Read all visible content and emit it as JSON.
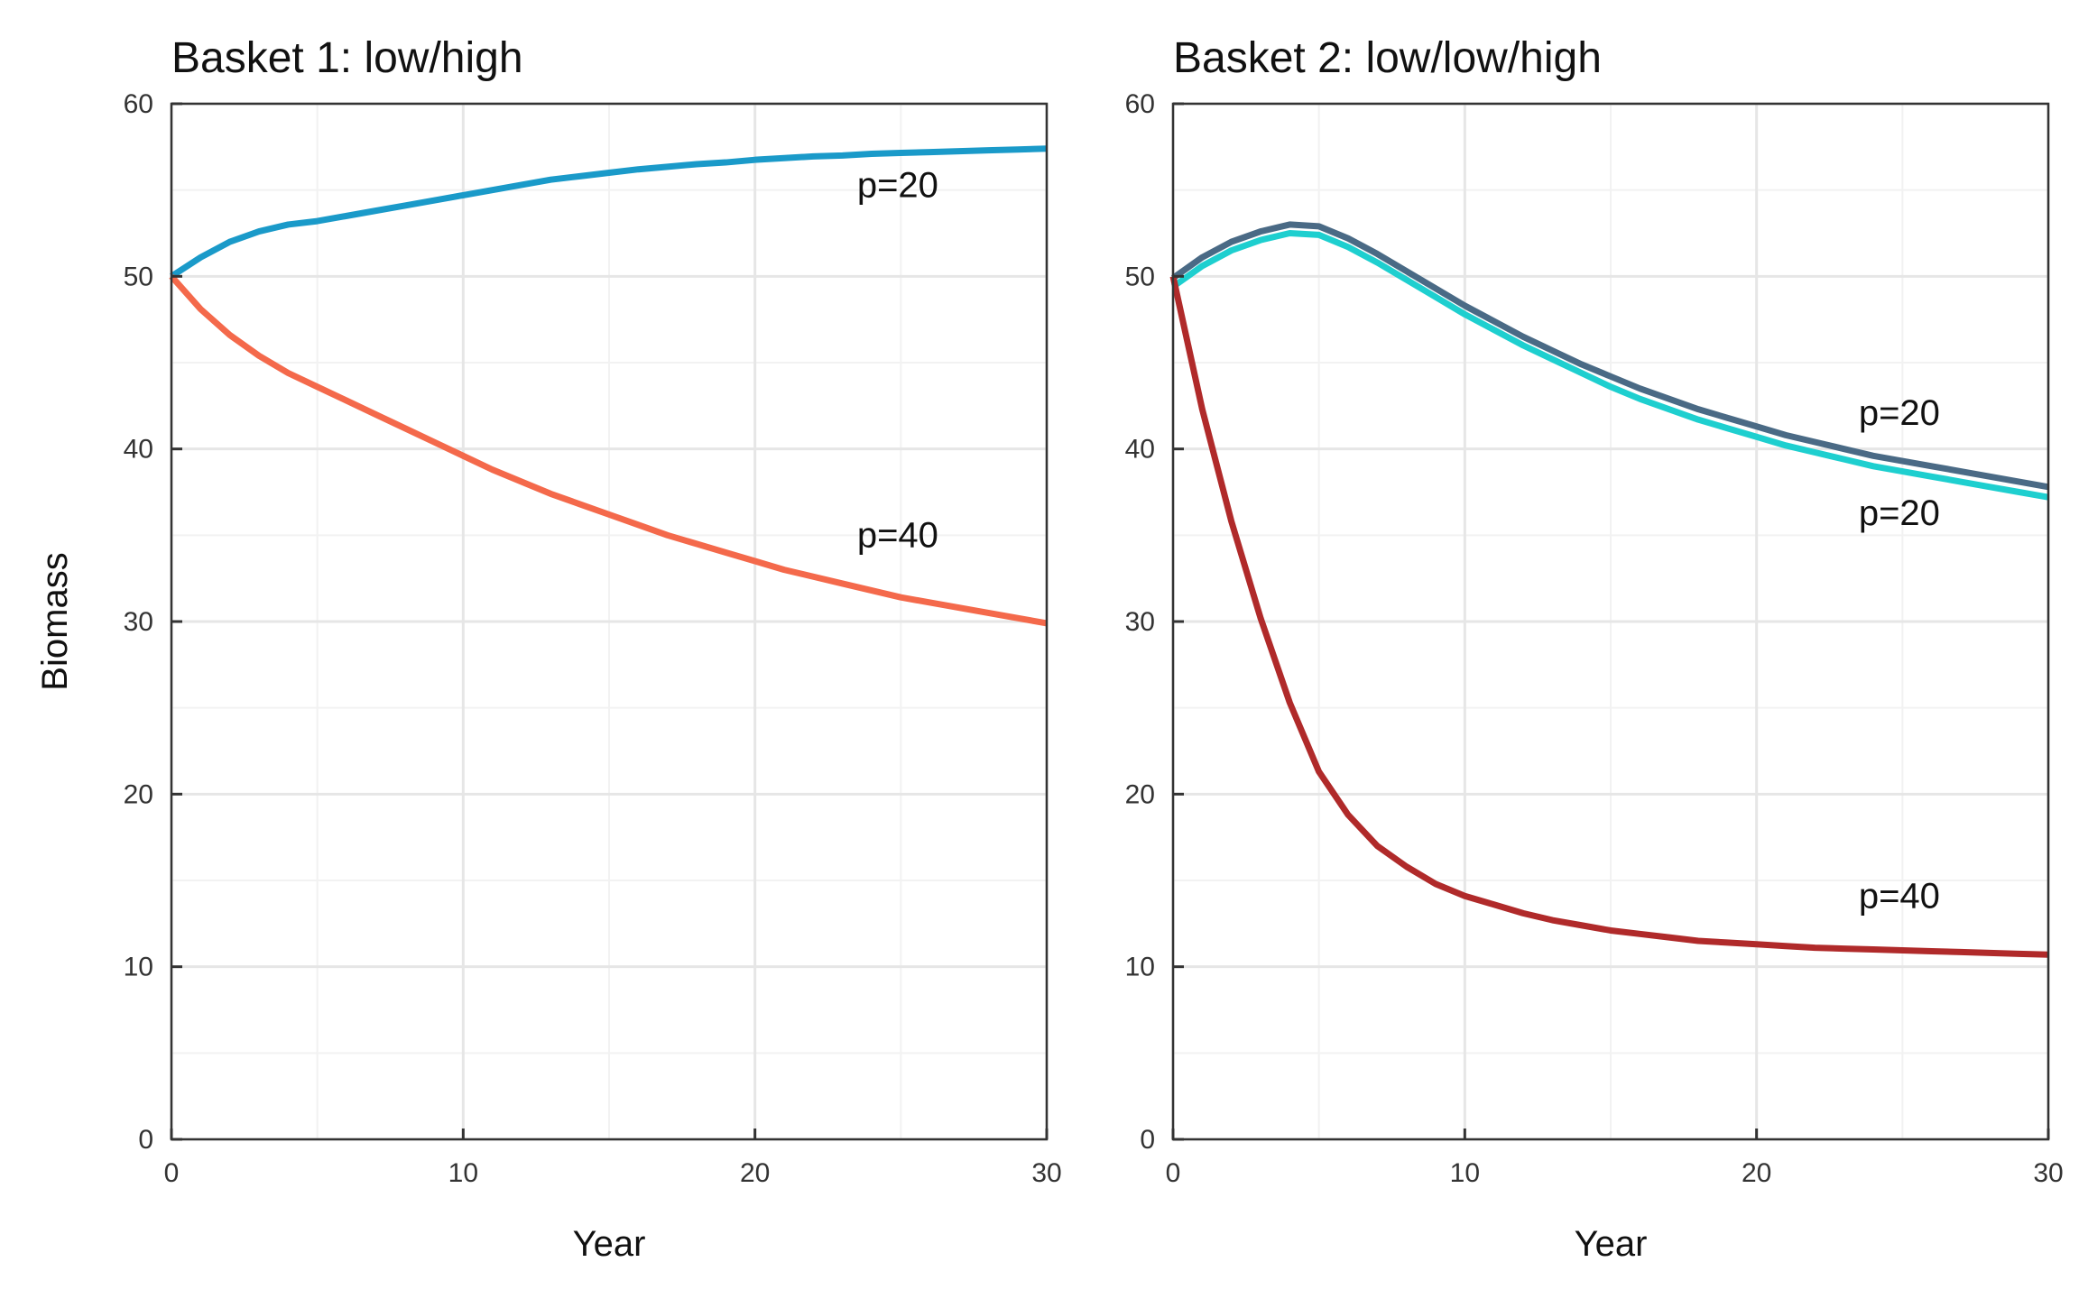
{
  "chart_data": [
    {
      "type": "line",
      "title": "Basket 1: low/high",
      "xlabel": "Year",
      "ylabel": "Biomass",
      "xlim": [
        0,
        30
      ],
      "ylim": [
        0,
        60
      ],
      "xticks": [
        0,
        10,
        20,
        30
      ],
      "yticks": [
        0,
        10,
        20,
        30,
        40,
        50,
        60
      ],
      "grid": true,
      "x": [
        0,
        1,
        2,
        3,
        4,
        5,
        6,
        7,
        8,
        9,
        10,
        11,
        12,
        13,
        14,
        15,
        16,
        17,
        18,
        19,
        20,
        21,
        22,
        23,
        24,
        25,
        26,
        27,
        28,
        29,
        30
      ],
      "series": [
        {
          "color": "#1a9ac9",
          "values": [
            50.0,
            51.1,
            52.0,
            52.6,
            53.0,
            53.2,
            53.5,
            53.8,
            54.1,
            54.4,
            54.7,
            55.0,
            55.3,
            55.6,
            55.8,
            56.0,
            56.2,
            56.35,
            56.5,
            56.6,
            56.75,
            56.85,
            56.95,
            57.0,
            57.1,
            57.15,
            57.2,
            57.25,
            57.3,
            57.35,
            57.4
          ]
        },
        {
          "color": "#f4694b",
          "values": [
            50.0,
            48.1,
            46.6,
            45.4,
            44.4,
            43.6,
            42.8,
            42.0,
            41.2,
            40.4,
            39.6,
            38.8,
            38.1,
            37.4,
            36.8,
            36.2,
            35.6,
            35.0,
            34.5,
            34.0,
            33.5,
            33.0,
            32.6,
            32.2,
            31.8,
            31.4,
            31.1,
            30.8,
            30.5,
            30.2,
            29.9
          ]
        }
      ],
      "annotations": [
        {
          "text": "p=20",
          "x": 23.5,
          "y": 54.6
        },
        {
          "text": "p=40",
          "x": 23.5,
          "y": 34.3
        }
      ]
    },
    {
      "type": "line",
      "title": "Basket 2: low/low/high",
      "xlabel": "Year",
      "ylabel": "",
      "xlim": [
        0,
        30
      ],
      "ylim": [
        0,
        60
      ],
      "xticks": [
        0,
        10,
        20,
        30
      ],
      "yticks": [
        0,
        10,
        20,
        30,
        40,
        50,
        60
      ],
      "grid": true,
      "x": [
        0,
        1,
        2,
        3,
        4,
        5,
        6,
        7,
        8,
        9,
        10,
        11,
        12,
        13,
        14,
        15,
        16,
        17,
        18,
        19,
        20,
        21,
        22,
        23,
        24,
        25,
        26,
        27,
        28,
        29,
        30
      ],
      "series": [
        {
          "color": "#4a6a85",
          "values": [
            49.9,
            51.1,
            52.0,
            52.6,
            53.0,
            52.9,
            52.2,
            51.3,
            50.3,
            49.3,
            48.3,
            47.4,
            46.5,
            45.7,
            44.9,
            44.2,
            43.5,
            42.9,
            42.3,
            41.8,
            41.3,
            40.8,
            40.4,
            40.0,
            39.6,
            39.3,
            39.0,
            38.7,
            38.4,
            38.1,
            37.8
          ]
        },
        {
          "color": "#1ecfcf",
          "values": [
            49.4,
            50.6,
            51.5,
            52.1,
            52.5,
            52.4,
            51.7,
            50.8,
            49.8,
            48.8,
            47.8,
            46.9,
            46.0,
            45.2,
            44.4,
            43.6,
            42.9,
            42.3,
            41.7,
            41.2,
            40.7,
            40.2,
            39.8,
            39.4,
            39.0,
            38.7,
            38.4,
            38.1,
            37.8,
            37.5,
            37.2
          ]
        },
        {
          "color": "#b02a2a",
          "values": [
            50.0,
            42.3,
            35.8,
            30.2,
            25.3,
            21.3,
            18.8,
            17.0,
            15.8,
            14.8,
            14.1,
            13.6,
            13.1,
            12.7,
            12.4,
            12.1,
            11.9,
            11.7,
            11.5,
            11.4,
            11.3,
            11.2,
            11.1,
            11.05,
            11.0,
            10.95,
            10.9,
            10.85,
            10.8,
            10.75,
            10.7
          ]
        }
      ],
      "annotations": [
        {
          "text": "p=20",
          "x": 23.5,
          "y": 41.4
        },
        {
          "text": "p=20",
          "x": 23.5,
          "y": 35.6
        },
        {
          "text": "p=40",
          "x": 23.5,
          "y": 13.4
        }
      ]
    }
  ]
}
